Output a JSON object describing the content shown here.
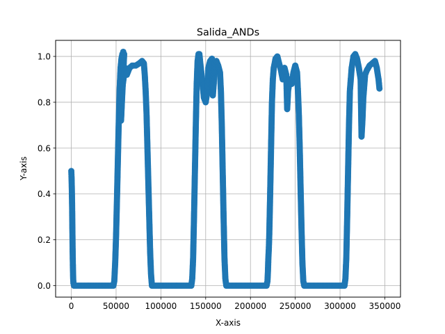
{
  "chart_data": {
    "type": "scatter",
    "title": "Salida_ANDs",
    "xlabel": "X-axis",
    "ylabel": "Y-axis",
    "xlim": [
      -17500,
      367500
    ],
    "ylim": [
      -0.05,
      1.07
    ],
    "xticks": [
      0,
      50000,
      100000,
      150000,
      200000,
      250000,
      300000,
      350000
    ],
    "xtick_labels": [
      "0",
      "50000",
      "100000",
      "150000",
      "200000",
      "250000",
      "300000",
      "350000"
    ],
    "yticks": [
      0.0,
      0.2,
      0.4,
      0.6,
      0.8,
      1.0
    ],
    "ytick_labels": [
      "0.0",
      "0.2",
      "0.4",
      "0.6",
      "0.8",
      "1.0"
    ],
    "grid": true,
    "marker_color": "#1f77b4",
    "series": [
      {
        "points": [
          [
            0,
            0.5
          ],
          [
            300,
            0.47
          ],
          [
            600,
            0.42
          ],
          [
            900,
            0.35
          ],
          [
            1200,
            0.25
          ],
          [
            1500,
            0.15
          ],
          [
            1800,
            0.08
          ],
          [
            2100,
            0.03
          ],
          [
            2400,
            0.01
          ],
          [
            3000,
            0.0
          ],
          [
            10000,
            0.0
          ],
          [
            20000,
            0.0
          ],
          [
            30000,
            0.0
          ],
          [
            40000,
            0.0
          ],
          [
            47000,
            0.0
          ],
          [
            48000,
            0.02
          ],
          [
            49000,
            0.1
          ],
          [
            50000,
            0.22
          ],
          [
            51000,
            0.38
          ],
          [
            52000,
            0.55
          ],
          [
            53000,
            0.72
          ],
          [
            54000,
            0.86
          ],
          [
            55000,
            0.95
          ],
          [
            56000,
            0.99
          ],
          [
            57000,
            1.01
          ],
          [
            58000,
            1.02
          ],
          [
            59000,
            1.01
          ],
          [
            55500,
            0.72
          ],
          [
            56000,
            0.78
          ],
          [
            56500,
            0.85
          ],
          [
            60000,
            0.95
          ],
          [
            62000,
            0.92
          ],
          [
            65000,
            0.95
          ],
          [
            68000,
            0.96
          ],
          [
            72000,
            0.96
          ],
          [
            76000,
            0.97
          ],
          [
            79000,
            0.98
          ],
          [
            81000,
            0.97
          ],
          [
            82000,
            0.92
          ],
          [
            83000,
            0.85
          ],
          [
            84000,
            0.75
          ],
          [
            85000,
            0.6
          ],
          [
            86000,
            0.45
          ],
          [
            87000,
            0.3
          ],
          [
            88000,
            0.15
          ],
          [
            89000,
            0.05
          ],
          [
            90000,
            0.0
          ],
          [
            95000,
            0.0
          ],
          [
            105000,
            0.0
          ],
          [
            115000,
            0.0
          ],
          [
            125000,
            0.0
          ],
          [
            134000,
            0.0
          ],
          [
            135000,
            0.03
          ],
          [
            136000,
            0.12
          ],
          [
            137000,
            0.3
          ],
          [
            138000,
            0.5
          ],
          [
            139000,
            0.7
          ],
          [
            140000,
            0.88
          ],
          [
            141000,
            0.98
          ],
          [
            142000,
            1.01
          ],
          [
            143000,
            1.01
          ],
          [
            144000,
            0.97
          ],
          [
            146000,
            0.9
          ],
          [
            148000,
            0.82
          ],
          [
            150000,
            0.8
          ],
          [
            152000,
            0.85
          ],
          [
            153000,
            0.95
          ],
          [
            155000,
            0.98
          ],
          [
            157000,
            0.99
          ],
          [
            158000,
            0.83
          ],
          [
            159000,
            0.88
          ],
          [
            160000,
            0.97
          ],
          [
            162000,
            0.98
          ],
          [
            164000,
            0.96
          ],
          [
            166000,
            0.93
          ],
          [
            167000,
            0.85
          ],
          [
            168000,
            0.7
          ],
          [
            169000,
            0.5
          ],
          [
            170000,
            0.3
          ],
          [
            171000,
            0.12
          ],
          [
            172000,
            0.03
          ],
          [
            173000,
            0.0
          ],
          [
            180000,
            0.0
          ],
          [
            190000,
            0.0
          ],
          [
            200000,
            0.0
          ],
          [
            210000,
            0.0
          ],
          [
            218000,
            0.0
          ],
          [
            219000,
            0.02
          ],
          [
            219500,
            0.06
          ],
          [
            220000,
            0.12
          ],
          [
            220500,
            0.16
          ],
          [
            221000,
            0.22
          ],
          [
            222000,
            0.4
          ],
          [
            223000,
            0.6
          ],
          [
            224000,
            0.8
          ],
          [
            225000,
            0.9
          ],
          [
            226000,
            0.95
          ],
          [
            228000,
            0.99
          ],
          [
            230000,
            1.0
          ],
          [
            232000,
            0.97
          ],
          [
            234000,
            0.94
          ],
          [
            236000,
            0.9
          ],
          [
            238000,
            0.95
          ],
          [
            240000,
            0.92
          ],
          [
            241000,
            0.77
          ],
          [
            242000,
            0.85
          ],
          [
            244000,
            0.9
          ],
          [
            246000,
            0.88
          ],
          [
            248000,
            0.93
          ],
          [
            250000,
            0.96
          ],
          [
            252000,
            0.93
          ],
          [
            253000,
            0.85
          ],
          [
            254000,
            0.75
          ],
          [
            255000,
            0.6
          ],
          [
            256000,
            0.42
          ],
          [
            257000,
            0.25
          ],
          [
            258000,
            0.1
          ],
          [
            259000,
            0.02
          ],
          [
            260000,
            0.0
          ],
          [
            270000,
            0.0
          ],
          [
            280000,
            0.0
          ],
          [
            290000,
            0.0
          ],
          [
            300000,
            0.0
          ],
          [
            305000,
            0.0
          ],
          [
            306000,
            0.03
          ],
          [
            307000,
            0.12
          ],
          [
            308000,
            0.3
          ],
          [
            309000,
            0.5
          ],
          [
            310000,
            0.7
          ],
          [
            311000,
            0.85
          ],
          [
            313000,
            0.95
          ],
          [
            315000,
            1.0
          ],
          [
            317000,
            1.01
          ],
          [
            319000,
            0.99
          ],
          [
            321000,
            0.95
          ],
          [
            323000,
            0.9
          ],
          [
            324000,
            0.65
          ],
          [
            325000,
            0.72
          ],
          [
            326000,
            0.82
          ],
          [
            328000,
            0.92
          ],
          [
            330000,
            0.94
          ],
          [
            333000,
            0.96
          ],
          [
            336000,
            0.97
          ],
          [
            339000,
            0.98
          ],
          [
            341000,
            0.95
          ],
          [
            343000,
            0.9
          ],
          [
            344000,
            0.86
          ]
        ]
      }
    ]
  }
}
